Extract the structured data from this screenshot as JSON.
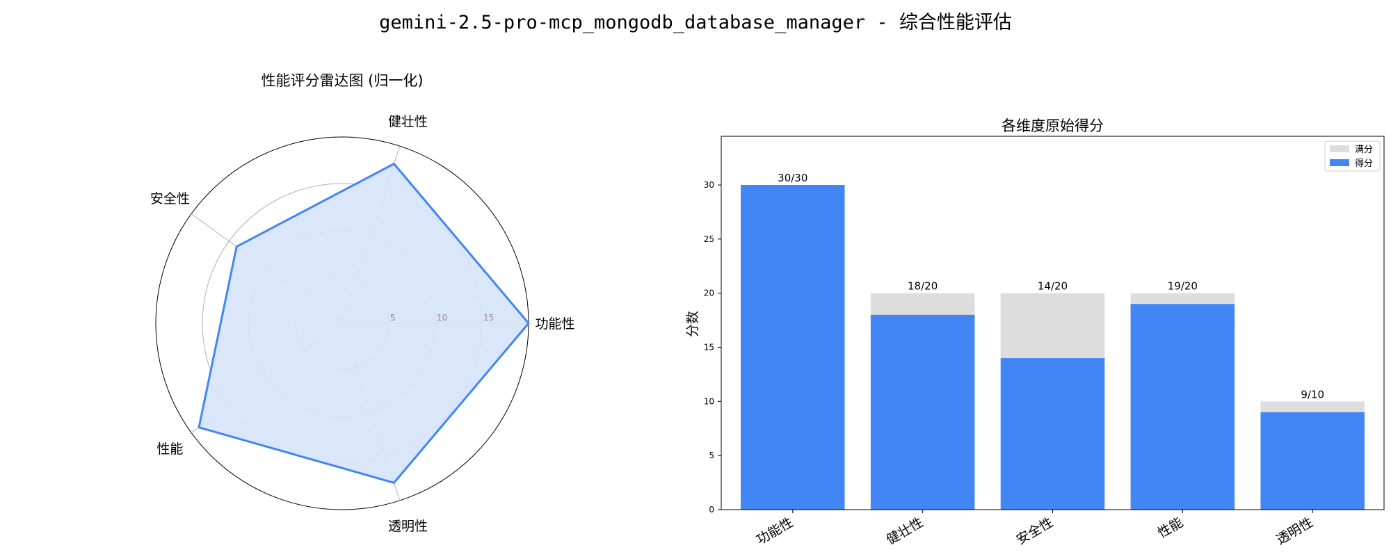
{
  "title": "gemini-2.5-pro-mcp_mongodb_database_manager - 综合性能评估",
  "chart_data": [
    {
      "type": "radar",
      "title": "性能评分雷达图 (归一化)",
      "axes": [
        "功能性",
        "健壮性",
        "安全性",
        "性能",
        "透明性"
      ],
      "values": [
        20,
        18,
        14,
        19,
        18
      ],
      "radial_ticks": [
        5,
        10,
        15
      ],
      "rlim": [
        0,
        20
      ],
      "colors": {
        "line": "#4285F4",
        "fill": "#D6E3F8"
      }
    },
    {
      "type": "bar",
      "title": "各维度原始得分",
      "ylabel": "分数",
      "categories": [
        "功能性",
        "健壮性",
        "安全性",
        "性能",
        "透明性"
      ],
      "series": [
        {
          "name": "满分",
          "values": [
            30,
            20,
            20,
            20,
            10
          ],
          "color": "#DDDDDD"
        },
        {
          "name": "得分",
          "values": [
            30,
            18,
            14,
            19,
            9
          ],
          "color": "#4285F4"
        }
      ],
      "data_labels": [
        "30/30",
        "18/20",
        "14/20",
        "19/20",
        "9/10"
      ],
      "yticks": [
        0,
        5,
        10,
        15,
        20,
        25,
        30
      ],
      "ylim": [
        0,
        34.5
      ],
      "legend": "top-right"
    }
  ]
}
